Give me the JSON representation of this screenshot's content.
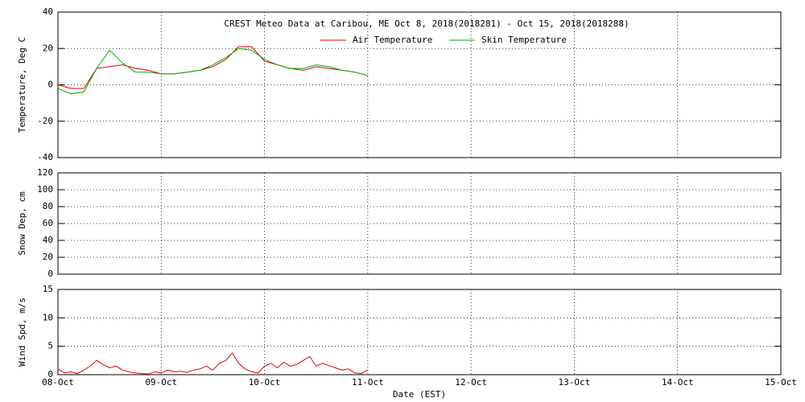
{
  "chart_data": [
    {
      "type": "line",
      "title": "CREST Meteo Data at Caribou, ME   Oct  8, 2018(2018281) - Oct 15, 2018(2018288)",
      "ylabel": "Temperature, Deg C",
      "xlim": [
        0,
        7
      ],
      "xticks": [
        0,
        1,
        2,
        3,
        4,
        5,
        6,
        7
      ],
      "ylim": [
        -40,
        40
      ],
      "yticks": [
        -40,
        -20,
        0,
        20,
        40
      ],
      "grid": true,
      "x": [
        0,
        0.125,
        0.25,
        0.375,
        0.5,
        0.625,
        0.75,
        0.875,
        1,
        1.125,
        1.25,
        1.375,
        1.5,
        1.625,
        1.75,
        1.875,
        2,
        2.125,
        2.25,
        2.375,
        2.5,
        2.625,
        2.75,
        2.875,
        3
      ],
      "series": [
        {
          "name": "Air Temperature",
          "color": "#e00000",
          "values": [
            0,
            -2,
            -2,
            9,
            10,
            11,
            9,
            8,
            6,
            6,
            7,
            8,
            10,
            14,
            21,
            21,
            13,
            11,
            9,
            8,
            10,
            9,
            8,
            7,
            5
          ]
        },
        {
          "name": "Skin Temperature",
          "color": "#00b000",
          "values": [
            -2,
            -5,
            -4,
            9,
            19,
            12,
            7,
            7,
            6,
            6,
            7,
            8,
            11,
            15,
            20,
            19,
            14,
            11,
            9,
            9,
            11,
            10,
            8,
            7,
            5
          ]
        }
      ]
    },
    {
      "type": "line",
      "ylabel": "Snow Dep, cm",
      "xlim": [
        0,
        7
      ],
      "xticks": [
        0,
        1,
        2,
        3,
        4,
        5,
        6,
        7
      ],
      "ylim": [
        0,
        120
      ],
      "yticks": [
        0,
        20,
        40,
        60,
        80,
        100,
        120
      ],
      "grid": true,
      "series": []
    },
    {
      "type": "line",
      "ylabel": "Wind Spd, m/s",
      "xlabel": "Date (EST)",
      "xlim": [
        0,
        7
      ],
      "xticks": [
        {
          "value": 0,
          "label": "08-Oct"
        },
        {
          "value": 1,
          "label": "09-Oct"
        },
        {
          "value": 2,
          "label": "10-Oct"
        },
        {
          "value": 3,
          "label": "11-Oct"
        },
        {
          "value": 4,
          "label": "12-Oct"
        },
        {
          "value": 5,
          "label": "13-Oct"
        },
        {
          "value": 6,
          "label": "14-Oct"
        },
        {
          "value": 7,
          "label": "15-Oct"
        }
      ],
      "ylim": [
        0,
        15
      ],
      "yticks": [
        0,
        5,
        10,
        15
      ],
      "grid": true,
      "x": [
        0,
        0.0625,
        0.125,
        0.1875,
        0.25,
        0.3125,
        0.375,
        0.4375,
        0.5,
        0.5625,
        0.625,
        0.6875,
        0.75,
        0.8125,
        0.875,
        0.9375,
        1,
        1.0625,
        1.125,
        1.1875,
        1.25,
        1.3125,
        1.375,
        1.4375,
        1.5,
        1.5625,
        1.625,
        1.6875,
        1.75,
        1.8125,
        1.875,
        1.9375,
        2,
        2.0625,
        2.125,
        2.1875,
        2.25,
        2.3125,
        2.375,
        2.4375,
        2.5,
        2.5625,
        2.625,
        2.6875,
        2.75,
        2.8125,
        2.875,
        2.9375,
        3
      ],
      "series": [
        {
          "name": "Wind Speed",
          "color": "#e00000",
          "values": [
            1,
            0.3,
            0.5,
            0.2,
            0.8,
            1.5,
            2.5,
            1.8,
            1.2,
            1.5,
            0.8,
            0.5,
            0.3,
            0.2,
            0.1,
            0.5,
            0.3,
            0.8,
            0.5,
            0.6,
            0.4,
            0.8,
            1.0,
            1.5,
            0.8,
            2.0,
            2.5,
            3.8,
            2.0,
            1.0,
            0.5,
            0.3,
            1.5,
            2.0,
            1.2,
            2.2,
            1.5,
            1.8,
            2.5,
            3.2,
            1.5,
            2.0,
            1.6,
            1.2,
            0.8,
            1.0,
            0.3,
            0.2,
            0.8
          ]
        }
      ]
    }
  ]
}
